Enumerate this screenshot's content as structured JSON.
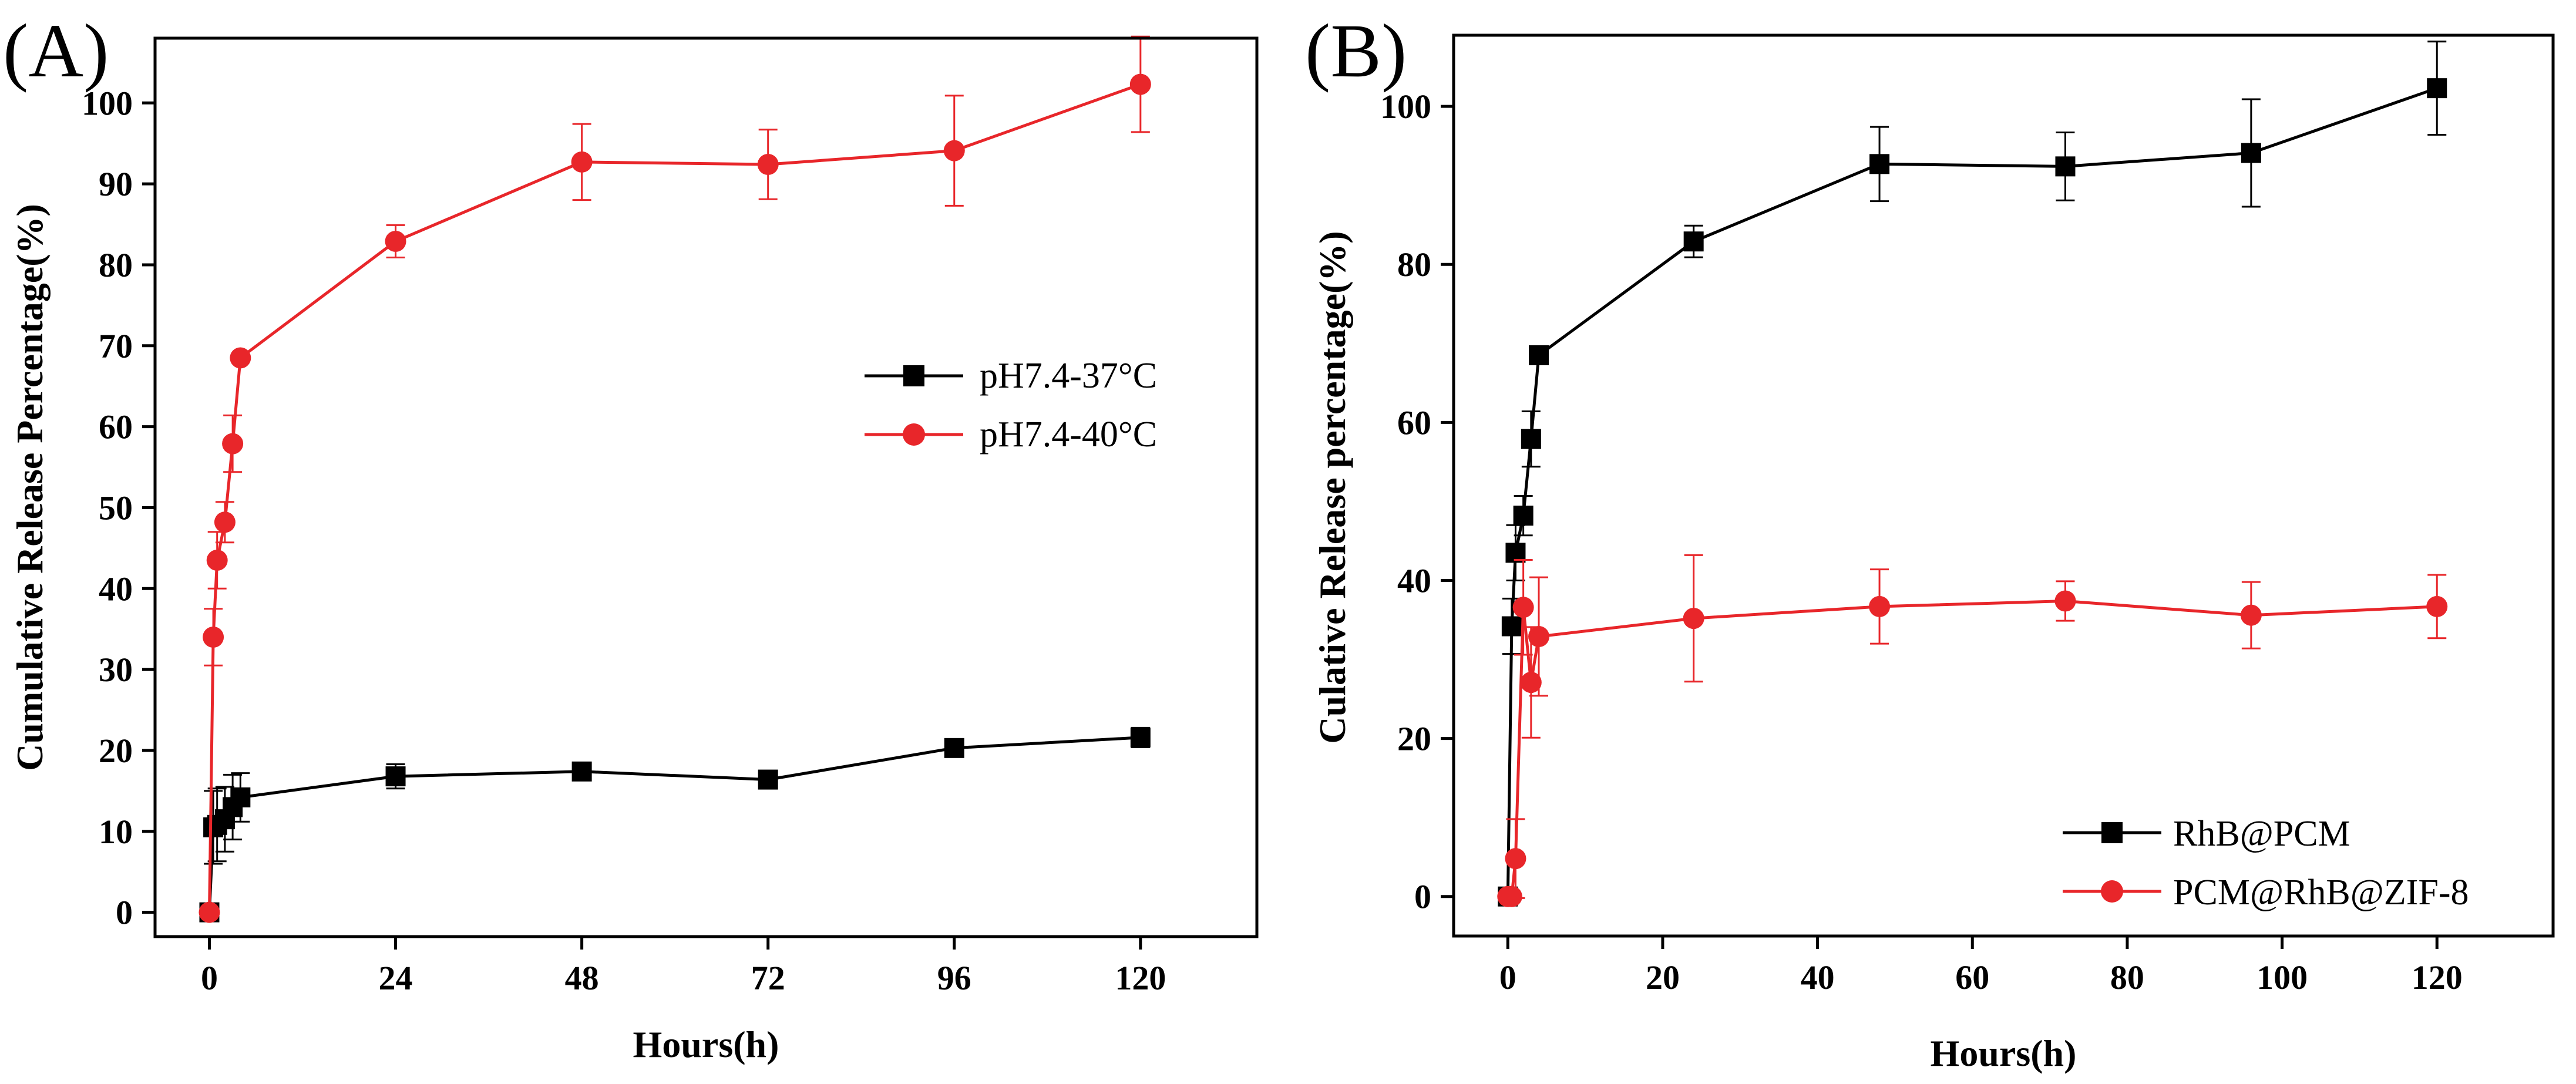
{
  "chart_data": [
    {
      "type": "line",
      "panel_label": "(A)",
      "title": "",
      "xlabel": "Hours(h)",
      "ylabel": "Cumulative Release Percentage(%)",
      "xlim": [
        -7,
        135
      ],
      "ylim": [
        -3,
        108
      ],
      "xticks": [
        0,
        24,
        48,
        72,
        96,
        120
      ],
      "xtick_labels": [
        "0",
        "24",
        "48",
        "72",
        "96",
        "120"
      ],
      "yticks": [
        0,
        10,
        20,
        30,
        40,
        50,
        60,
        70,
        80,
        90,
        100
      ],
      "ytick_labels": [
        "0",
        "10",
        "20",
        "30",
        "40",
        "50",
        "60",
        "70",
        "80",
        "90",
        "100"
      ],
      "grid": false,
      "legend_position": "middle-right",
      "series": [
        {
          "name": "pH7.4-37°C",
          "color": "#000000",
          "marker": "square",
          "x": [
            0,
            0.5,
            1,
            2,
            3,
            4,
            24,
            48,
            72,
            96,
            120
          ],
          "y": [
            0,
            10.5,
            10.8,
            11.5,
            13,
            14.2,
            16.8,
            17.4,
            16.4,
            20.3,
            21.6
          ],
          "yerr": [
            0,
            4.5,
            4.5,
            4,
            4,
            3,
            1.5,
            0.8,
            0.8,
            1.0,
            1.2
          ]
        },
        {
          "name": "pH7.4-40°C",
          "color": "#e8262a",
          "marker": "circle",
          "x": [
            0,
            0.5,
            1,
            2,
            3,
            4,
            24,
            48,
            72,
            96,
            120
          ],
          "y": [
            0,
            34,
            43.5,
            48.2,
            57.9,
            68.5,
            82.9,
            92.7,
            92.4,
            94.1,
            102.3
          ],
          "yerr": [
            0,
            3.5,
            3.5,
            2.5,
            3.5,
            0,
            2.0,
            4.7,
            4.3,
            6.8,
            5.9
          ]
        }
      ]
    },
    {
      "type": "line",
      "panel_label": "(B)",
      "title": "",
      "xlabel": "Hours(h)",
      "ylabel": "Culative Release percentage(%)",
      "xlim": [
        -7,
        135
      ],
      "ylim": [
        -5,
        109
      ],
      "xticks": [
        0,
        20,
        40,
        60,
        80,
        100,
        120
      ],
      "xtick_labels": [
        "0",
        "20",
        "40",
        "60",
        "80",
        "100",
        "120"
      ],
      "yticks": [
        0,
        20,
        40,
        60,
        80,
        100
      ],
      "ytick_labels": [
        "0",
        "20",
        "40",
        "60",
        "80",
        "100"
      ],
      "grid": false,
      "legend_position": "bottom-right",
      "series": [
        {
          "name": "RhB@PCM",
          "color": "#000000",
          "marker": "square",
          "x": [
            0,
            0.5,
            1,
            2,
            3,
            4,
            24,
            48,
            72,
            96,
            120
          ],
          "y": [
            0,
            34.2,
            43.5,
            48.2,
            57.9,
            68.5,
            82.9,
            92.7,
            92.4,
            94.1,
            102.3
          ],
          "yerr": [
            0,
            3.5,
            3.5,
            2.5,
            3.5,
            0,
            2.0,
            4.7,
            4.3,
            6.8,
            5.9
          ]
        },
        {
          "name": "PCM@RhB@ZIF-8",
          "color": "#e8262a",
          "marker": "circle",
          "x": [
            0,
            0.5,
            1,
            2,
            3,
            4,
            24,
            48,
            72,
            96,
            120
          ],
          "y": [
            0,
            0,
            4.8,
            36.6,
            27.1,
            32.9,
            35.2,
            36.7,
            37.4,
            35.6,
            36.7
          ],
          "yerr": [
            0,
            0,
            5,
            6,
            7,
            7.5,
            8,
            4.7,
            2.5,
            4.2,
            4.0
          ]
        }
      ]
    }
  ]
}
